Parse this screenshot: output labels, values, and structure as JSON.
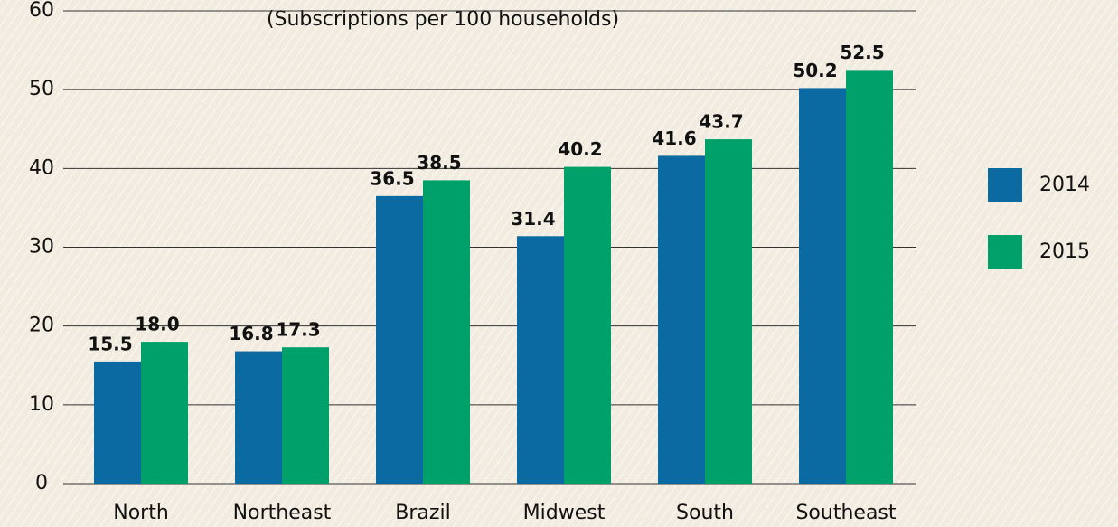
{
  "chart_data": {
    "type": "bar",
    "subtitle": "(Subscriptions per 100 households)",
    "categories": [
      "North",
      "Northeast",
      "Brazil",
      "Midwest",
      "South",
      "Southeast"
    ],
    "series": [
      {
        "name": "2014",
        "color": "#0b6aa2",
        "values": [
          15.5,
          16.8,
          36.5,
          31.4,
          41.6,
          50.2
        ]
      },
      {
        "name": "2015",
        "color": "#00a06b",
        "values": [
          18,
          17.3,
          38.5,
          40.2,
          43.7,
          52.5
        ],
        "value_labels": [
          "18.0",
          "17.3",
          "38.5",
          "40.2",
          "43.7",
          "52.5"
        ]
      }
    ],
    "ylim": [
      0,
      60
    ],
    "yticks": [
      0,
      10,
      20,
      30,
      40,
      50,
      60
    ],
    "grid": true,
    "legend": "right"
  }
}
